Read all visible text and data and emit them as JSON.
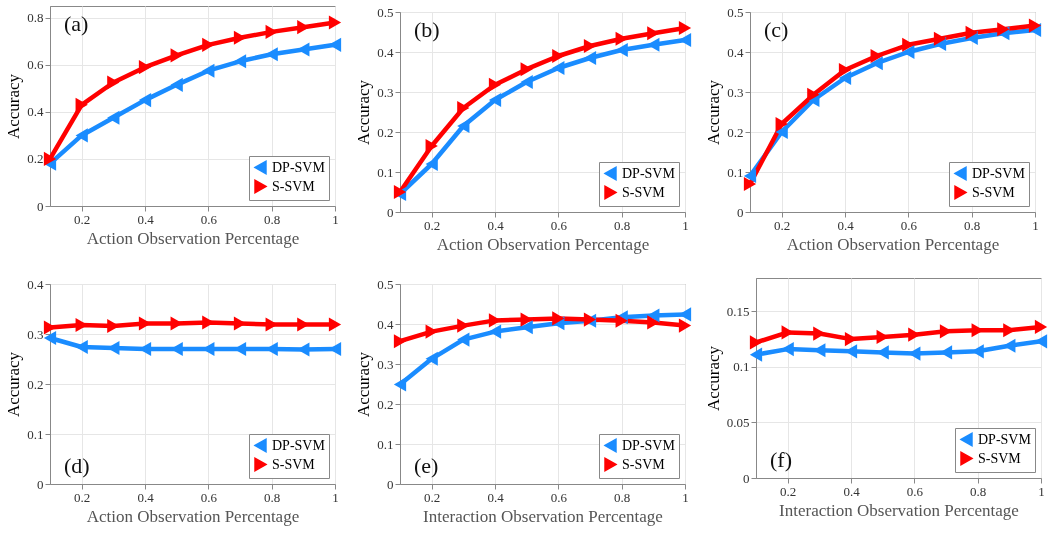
{
  "chart_data": [
    {
      "type": "line",
      "xlabel": "Action Observation Percentage",
      "ylabel": "Accuracy",
      "annotations": [
        "(a)"
      ],
      "x": [
        0.1,
        0.2,
        0.3,
        0.4,
        0.5,
        0.6,
        0.7,
        0.8,
        0.9,
        1
      ],
      "xlim": [
        0.1,
        1
      ],
      "xticks": [
        0.2,
        0.4,
        0.6,
        0.8,
        1
      ],
      "ylim": [
        0,
        0.85
      ],
      "yticks": [
        0,
        0.2,
        0.4,
        0.6,
        0.8
      ],
      "grid": true,
      "legend": "bottom right",
      "marker": "triangle",
      "series": [
        {
          "name": "DP-SVM",
          "color": "#1a8cff",
          "values": [
            0.18,
            0.3,
            0.375,
            0.45,
            0.515,
            0.575,
            0.615,
            0.645,
            0.665,
            0.685
          ]
        },
        {
          "name": "S-SVM",
          "color": "#ff0000",
          "values": [
            0.2,
            0.43,
            0.525,
            0.59,
            0.64,
            0.685,
            0.715,
            0.74,
            0.76,
            0.78
          ]
        }
      ]
    },
    {
      "type": "line",
      "xlabel": "Action Observation Percentage",
      "ylabel": "Accuracy",
      "annotations": [
        "(b)"
      ],
      "x": [
        0.1,
        0.2,
        0.3,
        0.4,
        0.5,
        0.6,
        0.7,
        0.8,
        0.9,
        1
      ],
      "xlim": [
        0.1,
        1
      ],
      "xticks": [
        0.2,
        0.4,
        0.6,
        0.8,
        1
      ],
      "ylim": [
        0,
        0.5
      ],
      "yticks": [
        0,
        0.1,
        0.2,
        0.3,
        0.4,
        0.5
      ],
      "grid": true,
      "legend": "bottom right",
      "marker": "triangle",
      "series": [
        {
          "name": "DP-SVM",
          "color": "#1a8cff",
          "values": [
            0.045,
            0.12,
            0.215,
            0.28,
            0.325,
            0.36,
            0.385,
            0.405,
            0.418,
            0.43
          ]
        },
        {
          "name": "S-SVM",
          "color": "#ff0000",
          "values": [
            0.05,
            0.165,
            0.26,
            0.318,
            0.357,
            0.39,
            0.415,
            0.433,
            0.447,
            0.46
          ]
        }
      ]
    },
    {
      "type": "line",
      "xlabel": "Action Observation Percentage",
      "ylabel": "Accuracy",
      "annotations": [
        "(c)"
      ],
      "x": [
        0.1,
        0.2,
        0.3,
        0.4,
        0.5,
        0.6,
        0.7,
        0.8,
        0.9,
        1
      ],
      "xlim": [
        0.1,
        1
      ],
      "xticks": [
        0.2,
        0.4,
        0.6,
        0.8,
        1
      ],
      "ylim": [
        0,
        0.5
      ],
      "yticks": [
        0,
        0.1,
        0.2,
        0.3,
        0.4,
        0.5
      ],
      "grid": true,
      "legend": "bottom right",
      "marker": "triangle",
      "series": [
        {
          "name": "DP-SVM",
          "color": "#1a8cff",
          "values": [
            0.09,
            0.2,
            0.28,
            0.335,
            0.372,
            0.4,
            0.42,
            0.435,
            0.447,
            0.455
          ]
        },
        {
          "name": "S-SVM",
          "color": "#ff0000",
          "values": [
            0.07,
            0.22,
            0.293,
            0.355,
            0.39,
            0.418,
            0.433,
            0.448,
            0.457,
            0.466
          ]
        }
      ]
    },
    {
      "type": "line",
      "xlabel": "Action Observation Percentage",
      "ylabel": "Accuracy",
      "annotations": [
        "(d)"
      ],
      "x": [
        0.1,
        0.2,
        0.3,
        0.4,
        0.5,
        0.6,
        0.7,
        0.8,
        0.9,
        1
      ],
      "xlim": [
        0.1,
        1
      ],
      "xticks": [
        0.2,
        0.4,
        0.6,
        0.8,
        1
      ],
      "ylim": [
        0,
        0.4
      ],
      "yticks": [
        0,
        0.1,
        0.2,
        0.3,
        0.4
      ],
      "grid": true,
      "legend": "bottom right",
      "marker": "triangle",
      "series": [
        {
          "name": "DP-SVM",
          "color": "#1a8cff",
          "values": [
            0.292,
            0.274,
            0.272,
            0.27,
            0.27,
            0.27,
            0.27,
            0.27,
            0.269,
            0.27
          ]
        },
        {
          "name": "S-SVM",
          "color": "#ff0000",
          "values": [
            0.313,
            0.318,
            0.316,
            0.321,
            0.321,
            0.323,
            0.321,
            0.319,
            0.319,
            0.319
          ]
        }
      ]
    },
    {
      "type": "line",
      "xlabel": "Interaction Observation Percentage",
      "ylabel": "Accuracy",
      "annotations": [
        "(e)"
      ],
      "x": [
        0.1,
        0.2,
        0.3,
        0.4,
        0.5,
        0.6,
        0.7,
        0.8,
        0.9,
        1
      ],
      "xlim": [
        0.1,
        1
      ],
      "xticks": [
        0.2,
        0.4,
        0.6,
        0.8,
        1
      ],
      "ylim": [
        0,
        0.5
      ],
      "yticks": [
        0,
        0.1,
        0.2,
        0.3,
        0.4,
        0.5
      ],
      "grid": true,
      "legend": "bottom right",
      "marker": "triangle",
      "series": [
        {
          "name": "DP-SVM",
          "color": "#1a8cff",
          "values": [
            0.249,
            0.313,
            0.361,
            0.381,
            0.392,
            0.402,
            0.408,
            0.417,
            0.421,
            0.424
          ]
        },
        {
          "name": "S-SVM",
          "color": "#ff0000",
          "values": [
            0.357,
            0.381,
            0.396,
            0.409,
            0.411,
            0.414,
            0.411,
            0.408,
            0.404,
            0.396
          ]
        }
      ]
    },
    {
      "type": "line",
      "xlabel": "Interaction Observation Percentage",
      "ylabel": "Accuracy",
      "annotations": [
        "(f)"
      ],
      "x": [
        0.1,
        0.2,
        0.3,
        0.4,
        0.5,
        0.6,
        0.7,
        0.8,
        0.9,
        1
      ],
      "xlim": [
        0.1,
        1
      ],
      "xticks": [
        0.2,
        0.4,
        0.6,
        0.8,
        1
      ],
      "ylim": [
        0,
        0.18
      ],
      "yticks": [
        0,
        0.05,
        0.1,
        0.15
      ],
      "grid": true,
      "legend": "bottom right",
      "marker": "triangle",
      "series": [
        {
          "name": "DP-SVM",
          "color": "#1a8cff",
          "values": [
            0.111,
            0.116,
            0.115,
            0.114,
            0.113,
            0.112,
            0.113,
            0.114,
            0.119,
            0.123
          ]
        },
        {
          "name": "S-SVM",
          "color": "#ff0000",
          "values": [
            0.122,
            0.131,
            0.13,
            0.125,
            0.127,
            0.129,
            0.132,
            0.133,
            0.133,
            0.136
          ]
        }
      ]
    }
  ]
}
